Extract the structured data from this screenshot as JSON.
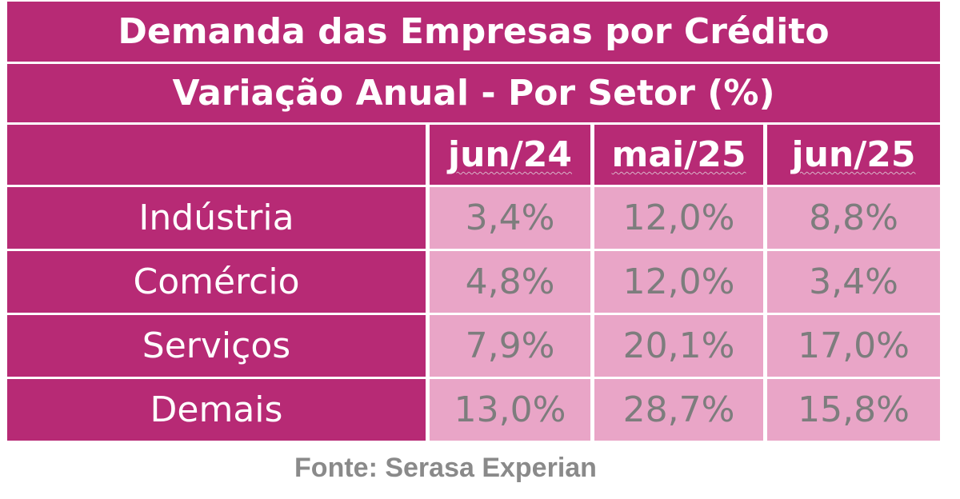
{
  "chart_data": {
    "type": "table",
    "title": "Demanda das Empresas por Crédito",
    "subtitle": "Variação Anual - Por Setor (%)",
    "columns": [
      "jun/24",
      "mai/25",
      "jun/25"
    ],
    "rows": [
      {
        "label": "Indústria",
        "values": [
          "3,4%",
          "12,0%",
          "8,8%"
        ]
      },
      {
        "label": "Comércio",
        "values": [
          "4,8%",
          "12,0%",
          "3,4%"
        ]
      },
      {
        "label": "Serviços",
        "values": [
          "7,9%",
          "20,1%",
          "17,0%"
        ]
      },
      {
        "label": "Demais",
        "values": [
          "13,0%",
          "28,7%",
          "15,8%"
        ]
      }
    ],
    "source": "Fonte: Serasa Experian"
  },
  "colors": {
    "header_bg": "#b72a75",
    "cell_bg": "#e9a5c7",
    "header_text": "#ffffff",
    "value_text": "#7d7d7d",
    "source_text": "#8a8a8a"
  }
}
